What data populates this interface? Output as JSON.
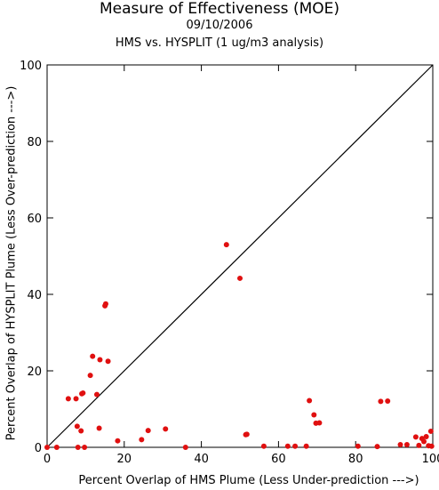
{
  "chart_data": {
    "type": "scatter",
    "title": "Measure of Effectiveness (MOE)",
    "subtitle": "09/10/2006",
    "subtitle2": "HMS vs. HYSPLIT  (1 ug/m3 analysis)",
    "xlabel": "Percent Overlap of HMS Plume (Less Under-prediction --->)",
    "ylabel": "Percent Overlap of HYSPLIT Plume (Less Over-prediction --->)",
    "xlim": [
      0,
      100
    ],
    "ylim": [
      0,
      100
    ],
    "x_ticks": [
      "0",
      "20",
      "40",
      "60",
      "80",
      "100"
    ],
    "y_ticks": [
      "0",
      "20",
      "40",
      "60",
      "80",
      "100"
    ],
    "reference_line": "y = x",
    "grid": false,
    "point_color": "#e01010",
    "points": [
      [
        0,
        0
      ],
      [
        2.5,
        0
      ],
      [
        5.5,
        12.7
      ],
      [
        7.5,
        12.7
      ],
      [
        7.8,
        5.5
      ],
      [
        8.8,
        4.3
      ],
      [
        9.0,
        14.0
      ],
      [
        9.3,
        14.2
      ],
      [
        8.0,
        0
      ],
      [
        9.7,
        0
      ],
      [
        11.2,
        18.8
      ],
      [
        11.8,
        23.8
      ],
      [
        12.9,
        13.8
      ],
      [
        13.5,
        5.0
      ],
      [
        13.7,
        22.9
      ],
      [
        15.0,
        37.0
      ],
      [
        15.2,
        37.5
      ],
      [
        15.8,
        22.5
      ],
      [
        18.3,
        1.7
      ],
      [
        24.5,
        2.0
      ],
      [
        26.2,
        4.4
      ],
      [
        30.7,
        4.8
      ],
      [
        35.9,
        0
      ],
      [
        46.5,
        53.0
      ],
      [
        50.0,
        44.2
      ],
      [
        51.5,
        3.3
      ],
      [
        51.8,
        3.4
      ],
      [
        56.2,
        0.3
      ],
      [
        62.4,
        0.3
      ],
      [
        64.3,
        0.3
      ],
      [
        67.2,
        0.3
      ],
      [
        68.0,
        12.2
      ],
      [
        69.2,
        8.5
      ],
      [
        69.7,
        6.3
      ],
      [
        70.6,
        6.4
      ],
      [
        80.6,
        0.3
      ],
      [
        85.6,
        0.2
      ],
      [
        86.5,
        12.0
      ],
      [
        88.3,
        12.1
      ],
      [
        91.6,
        0.7
      ],
      [
        93.3,
        0.7
      ],
      [
        95.6,
        2.7
      ],
      [
        96.4,
        0.5
      ],
      [
        97.2,
        2.3
      ],
      [
        97.7,
        1.5
      ],
      [
        98.3,
        2.8
      ],
      [
        98.9,
        0.4
      ],
      [
        99.5,
        4.2
      ],
      [
        99.7,
        0.3
      ]
    ]
  }
}
